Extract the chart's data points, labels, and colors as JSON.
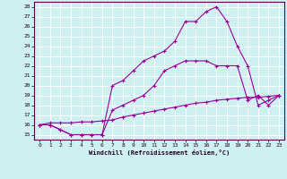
{
  "xlabel": "Windchill (Refroidissement éolien,°C)",
  "background_color": "#cff0f0",
  "line_color": "#990099",
  "grid_color": "#ffffff",
  "xmin": -0.5,
  "xmax": 23.5,
  "ymin": 14.5,
  "ymax": 28.5,
  "line1_x": [
    0,
    1,
    2,
    3,
    4,
    5,
    6,
    7,
    8,
    9,
    10,
    11,
    12,
    13,
    14,
    15,
    16,
    17,
    18,
    19,
    20,
    21,
    22,
    23
  ],
  "line1_y": [
    16.0,
    16.0,
    15.5,
    15.0,
    15.0,
    15.0,
    15.0,
    20.0,
    20.5,
    21.5,
    22.5,
    23.0,
    23.5,
    24.5,
    26.5,
    26.5,
    27.5,
    28.0,
    26.5,
    24.0,
    22.0,
    18.0,
    18.5,
    19.0
  ],
  "line2_x": [
    0,
    1,
    2,
    3,
    4,
    5,
    6,
    7,
    8,
    9,
    10,
    11,
    12,
    13,
    14,
    15,
    16,
    17,
    18,
    19,
    20,
    21,
    22,
    23
  ],
  "line2_y": [
    16.0,
    16.0,
    15.5,
    15.0,
    15.0,
    15.0,
    15.0,
    17.5,
    18.0,
    18.5,
    19.0,
    20.0,
    21.5,
    22.0,
    22.5,
    22.5,
    22.5,
    22.0,
    22.0,
    22.0,
    18.5,
    19.0,
    18.0,
    19.0
  ],
  "line3_x": [
    0,
    1,
    2,
    3,
    4,
    5,
    6,
    7,
    8,
    9,
    10,
    11,
    12,
    13,
    14,
    15,
    16,
    17,
    18,
    19,
    20,
    21,
    22,
    23
  ],
  "line3_y": [
    16.0,
    16.2,
    16.2,
    16.2,
    16.3,
    16.3,
    16.4,
    16.5,
    16.8,
    17.0,
    17.2,
    17.4,
    17.6,
    17.8,
    18.0,
    18.2,
    18.3,
    18.5,
    18.6,
    18.7,
    18.8,
    18.8,
    18.9,
    19.0
  ],
  "yticks": [
    15,
    16,
    17,
    18,
    19,
    20,
    21,
    22,
    23,
    24,
    25,
    26,
    27,
    28
  ],
  "xticks": [
    0,
    1,
    2,
    3,
    4,
    5,
    6,
    7,
    8,
    9,
    10,
    11,
    12,
    13,
    14,
    15,
    16,
    17,
    18,
    19,
    20,
    21,
    22,
    23
  ]
}
